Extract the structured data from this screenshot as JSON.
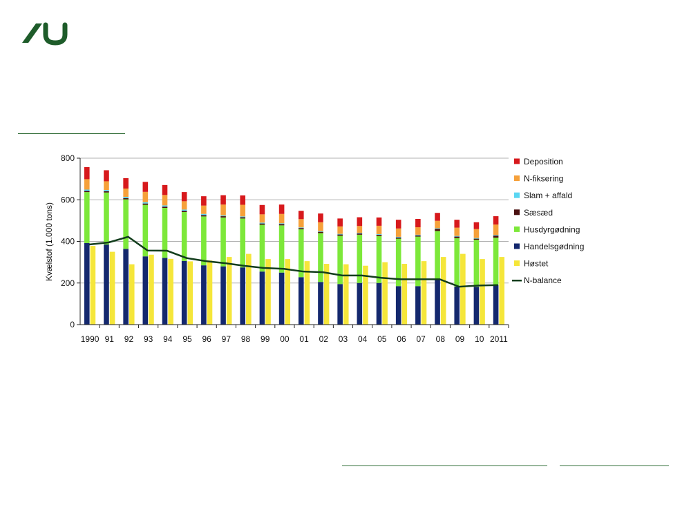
{
  "logo": {
    "icon": "au-logo-icon",
    "color": "#1e5c2a"
  },
  "chart_data": {
    "type": "bar",
    "stacked": true,
    "ylabel": "Kvælstof (1.000 tons)",
    "ylim": [
      0,
      800
    ],
    "yticks": [
      0,
      200,
      400,
      600,
      800
    ],
    "grid": "horizontal",
    "legend_position": "right",
    "categories": [
      "1990",
      "91",
      "92",
      "93",
      "94",
      "95",
      "96",
      "97",
      "98",
      "99",
      "00",
      "01",
      "02",
      "03",
      "04",
      "05",
      "06",
      "07",
      "08",
      "09",
      "10",
      "2011"
    ],
    "series": [
      {
        "name": "Deposition",
        "color": "#d7191c",
        "stack": "input",
        "values": [
          58,
          53,
          50,
          48,
          48,
          44,
          45,
          45,
          45,
          45,
          45,
          40,
          42,
          38,
          42,
          40,
          42,
          40,
          38,
          38,
          33,
          40
        ]
      },
      {
        "name": "N-fiksering",
        "color": "#f6a13a",
        "stack": "input",
        "values": [
          50,
          42,
          40,
          50,
          50,
          40,
          40,
          52,
          56,
          40,
          45,
          40,
          43,
          36,
          33,
          40,
          40,
          36,
          36,
          40,
          43,
          50
        ]
      },
      {
        "name": "Slam + affald",
        "color": "#5ad6f2",
        "stack": "input",
        "values": [
          6,
          6,
          6,
          6,
          6,
          6,
          6,
          4,
          4,
          4,
          4,
          3,
          3,
          3,
          3,
          3,
          3,
          3,
          3,
          3,
          3,
          3
        ]
      },
      {
        "name": "Sæsæd",
        "color": "#4a1010",
        "stack": "input",
        "values": [
          6,
          6,
          6,
          6,
          6,
          6,
          6,
          6,
          6,
          6,
          6,
          6,
          6,
          6,
          6,
          6,
          6,
          6,
          10,
          7,
          5,
          10
        ]
      },
      {
        "name": "Husdyrgødning",
        "color": "#7de83a",
        "stack": "input",
        "values": [
          245,
          250,
          238,
          248,
          240,
          235,
          235,
          235,
          235,
          225,
          227,
          230,
          235,
          232,
          232,
          226,
          228,
          238,
          230,
          233,
          226,
          228
        ]
      },
      {
        "name": "Handelsgødning",
        "color": "#14286e",
        "stack": "input",
        "values": [
          392,
          385,
          364,
          328,
          321,
          306,
          285,
          280,
          275,
          255,
          250,
          228,
          205,
          195,
          200,
          200,
          185,
          185,
          220,
          183,
          182,
          190
        ]
      },
      {
        "name": "Høstet",
        "color": "#f5e63a",
        "stack": "output",
        "values": [
          378,
          350,
          290,
          336,
          316,
          304,
          308,
          325,
          340,
          315,
          315,
          305,
          292,
          290,
          283,
          300,
          292,
          305,
          325,
          340,
          315,
          325
        ]
      }
    ],
    "line": {
      "name": "N-balance",
      "color": "#123d1c",
      "values": [
        385,
        395,
        422,
        356,
        355,
        320,
        305,
        295,
        282,
        272,
        268,
        255,
        252,
        236,
        236,
        225,
        218,
        218,
        218,
        182,
        188,
        190
      ]
    }
  }
}
